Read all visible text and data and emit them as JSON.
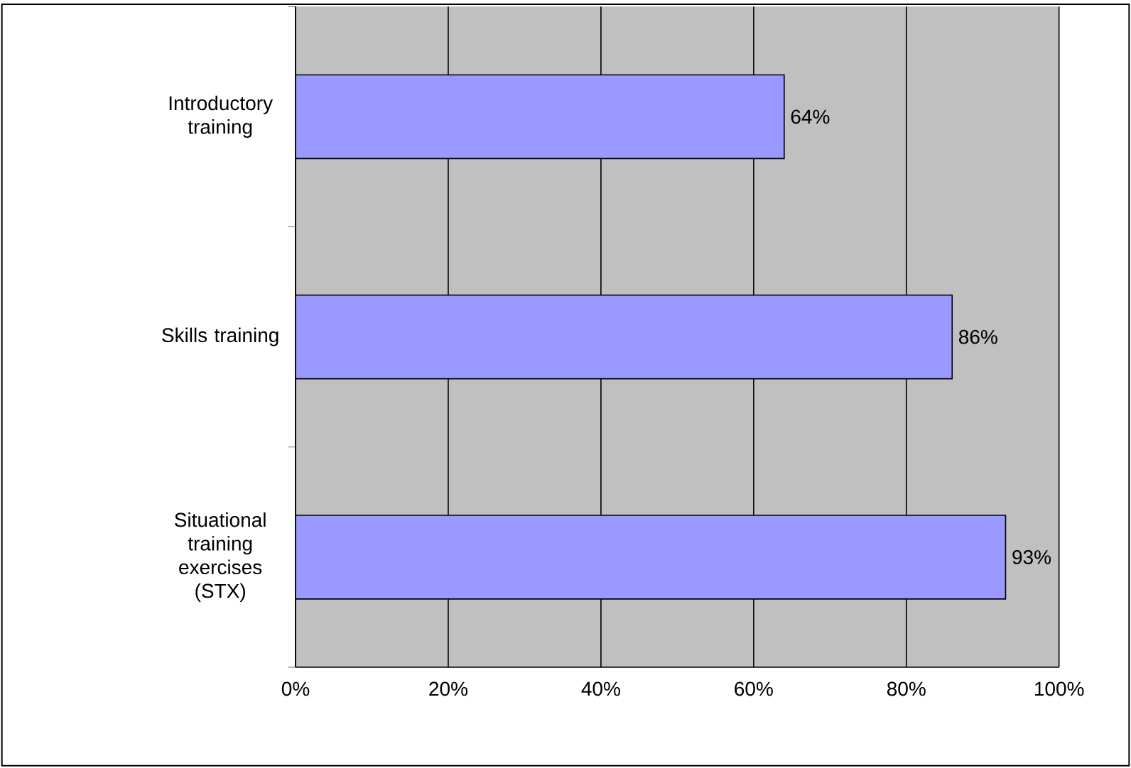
{
  "chart_data": {
    "type": "bar",
    "orientation": "horizontal",
    "categories": [
      "Introductory training",
      "Skills training",
      "Situational training exercises (STX)"
    ],
    "values": [
      64,
      86,
      93
    ],
    "color": "#9999ff",
    "value_labels": [
      "64%",
      "86%",
      "93%"
    ],
    "xlim": [
      0,
      100
    ],
    "xticks": [
      {
        "value": 0,
        "label": "0%"
      },
      {
        "value": 20,
        "label": "20%"
      },
      {
        "value": 40,
        "label": "40%"
      },
      {
        "value": 60,
        "label": "60%"
      },
      {
        "value": 80,
        "label": "80%"
      },
      {
        "value": 100,
        "label": "100%"
      }
    ],
    "grid": "x"
  }
}
